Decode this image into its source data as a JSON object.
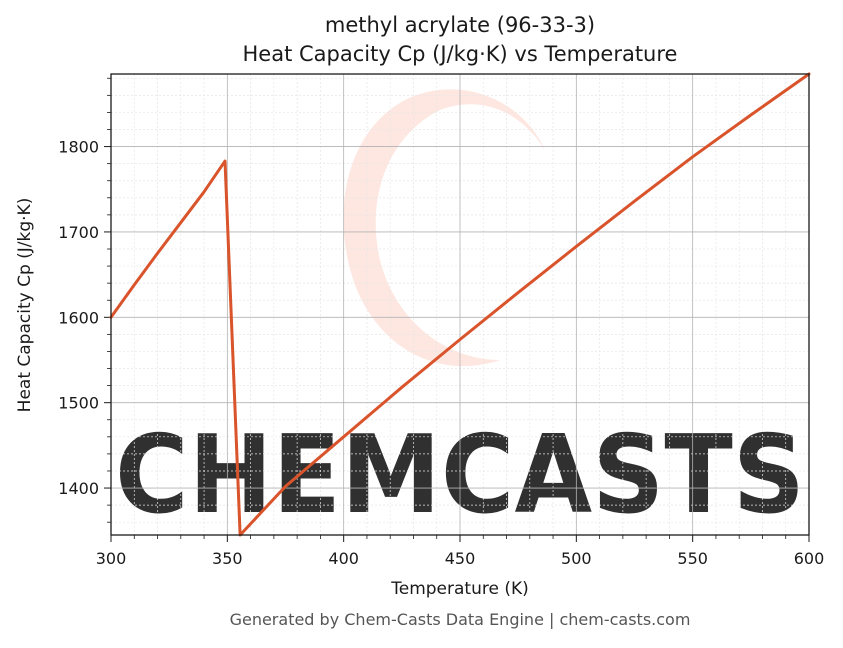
{
  "chart_data": {
    "type": "line",
    "title": "methyl acrylate (96-33-3)",
    "subtitle": "Heat Capacity Cp (J/kg·K) vs Temperature",
    "xlabel": "Temperature (K)",
    "ylabel": "Heat Capacity Cp (J/kg·K)",
    "xlim": [
      300,
      600
    ],
    "ylim": [
      1345,
      1885
    ],
    "x_ticks": [
      300,
      350,
      400,
      450,
      500,
      550,
      600
    ],
    "y_ticks": [
      1400,
      1500,
      1600,
      1700,
      1800
    ],
    "grid": true,
    "legend": "none",
    "series": [
      {
        "color": "#d9532b",
        "x": [
          300,
          310,
          320,
          330,
          340,
          349,
          349,
          355.5,
          355.5,
          375,
          400,
          425,
          450,
          475,
          500,
          525,
          550,
          575,
          600
        ],
        "y": [
          1600,
          1638,
          1675,
          1711,
          1747,
          1783,
          1783,
          1345,
          1345,
          1402,
          1460,
          1518,
          1574,
          1629,
          1683,
          1736,
          1788,
          1837,
          1885
        ]
      }
    ]
  },
  "footer": "Generated by Chem-Casts Data Engine | chem-casts.com",
  "watermark": {
    "text": "CHEMCASTS",
    "color": "#fdd9cf"
  }
}
